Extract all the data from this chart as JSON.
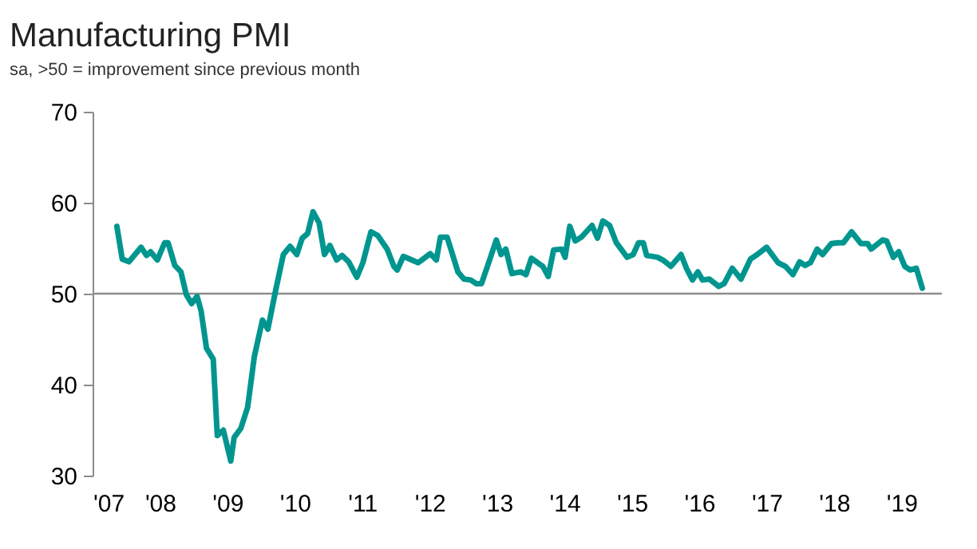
{
  "chart_data": {
    "type": "line",
    "title": "Manufacturing PMI",
    "subtitle": "sa, >50 = improvement since previous month",
    "x": [
      2007.36,
      2007.44,
      2007.54,
      2007.72,
      2007.8,
      2007.86,
      2007.96,
      2008.07,
      2008.12,
      2008.22,
      2008.31,
      2008.39,
      2008.47,
      2008.55,
      2008.61,
      2008.69,
      2008.79,
      2008.85,
      2008.94,
      2009.05,
      2009.1,
      2009.2,
      2009.3,
      2009.4,
      2009.52,
      2009.6,
      2009.72,
      2009.83,
      2009.93,
      2010.03,
      2010.11,
      2010.19,
      2010.27,
      2010.36,
      2010.44,
      2010.52,
      2010.62,
      2010.7,
      2010.8,
      2010.92,
      2011.01,
      2011.13,
      2011.23,
      2011.37,
      2011.47,
      2011.52,
      2011.61,
      2011.83,
      2012.01,
      2012.1,
      2012.16,
      2012.26,
      2012.42,
      2012.51,
      2012.61,
      2012.69,
      2012.77,
      2012.89,
      2012.99,
      2013.06,
      2013.13,
      2013.22,
      2013.35,
      2013.43,
      2013.51,
      2013.68,
      2013.76,
      2013.84,
      2013.96,
      2014.01,
      2014.08,
      2014.16,
      2014.25,
      2014.41,
      2014.49,
      2014.57,
      2014.67,
      2014.77,
      2014.93,
      2015.02,
      2015.1,
      2015.17,
      2015.22,
      2015.38,
      2015.46,
      2015.58,
      2015.73,
      2015.81,
      2015.9,
      2015.98,
      2016.05,
      2016.15,
      2016.29,
      2016.37,
      2016.49,
      2016.62,
      2016.76,
      2016.86,
      2017.0,
      2017.17,
      2017.28,
      2017.39,
      2017.49,
      2017.57,
      2017.65,
      2017.75,
      2017.83,
      2017.96,
      2018.06,
      2018.14,
      2018.26,
      2018.4,
      2018.5,
      2018.55,
      2018.72,
      2018.78,
      2018.88,
      2018.96,
      2019.05,
      2019.13,
      2019.22,
      2019.31
    ],
    "series": [
      {
        "color": "#00968f",
        "values": [
          57.4,
          53.8,
          53.5,
          55.1,
          54.2,
          54.6,
          53.7,
          55.6,
          55.6,
          53.1,
          52.4,
          49.9,
          48.9,
          49.7,
          48.1,
          44.0,
          42.8,
          34.4,
          35.0,
          31.6,
          34.2,
          35.2,
          37.5,
          43.1,
          47.1,
          46.1,
          50.5,
          54.3,
          55.2,
          54.3,
          56.1,
          56.6,
          59.0,
          57.8,
          54.3,
          55.3,
          53.7,
          54.2,
          53.5,
          51.8,
          53.4,
          56.8,
          56.4,
          54.9,
          53.0,
          52.6,
          54.1,
          53.4,
          54.4,
          53.7,
          56.2,
          56.2,
          52.4,
          51.6,
          51.5,
          51.1,
          51.1,
          53.7,
          55.9,
          54.3,
          54.9,
          52.2,
          52.4,
          52.1,
          53.9,
          53.0,
          51.9,
          54.8,
          54.9,
          54.0,
          57.4,
          55.8,
          56.2,
          57.5,
          56.1,
          58.0,
          57.5,
          55.6,
          54.0,
          54.3,
          55.6,
          55.6,
          54.2,
          54.0,
          53.7,
          53.0,
          54.3,
          52.8,
          51.5,
          52.4,
          51.5,
          51.6,
          50.8,
          51.1,
          52.8,
          51.6,
          53.8,
          54.3,
          55.1,
          53.4,
          53.0,
          52.1,
          53.5,
          53.1,
          53.4,
          54.9,
          54.3,
          55.5,
          55.6,
          55.6,
          56.8,
          55.5,
          55.5,
          54.9,
          55.9,
          55.8,
          54.0,
          54.6,
          53.0,
          52.6,
          52.8,
          50.6
        ]
      }
    ],
    "xlim": [
      2007,
      2019.6
    ],
    "xticks": [
      {
        "value": 2007,
        "label": "'07"
      },
      {
        "value": 2008,
        "label": "'08"
      },
      {
        "value": 2009,
        "label": "'09"
      },
      {
        "value": 2010,
        "label": "'10"
      },
      {
        "value": 2011,
        "label": "'11"
      },
      {
        "value": 2012,
        "label": "'12"
      },
      {
        "value": 2013,
        "label": "'13"
      },
      {
        "value": 2014,
        "label": "'14"
      },
      {
        "value": 2015,
        "label": "'15"
      },
      {
        "value": 2016,
        "label": "'16"
      },
      {
        "value": 2017,
        "label": "'17"
      },
      {
        "value": 2018,
        "label": "'18"
      },
      {
        "value": 2019,
        "label": "'19"
      }
    ],
    "ylim": [
      30,
      70
    ],
    "yticks": [
      30,
      40,
      50,
      60,
      70
    ],
    "ref_lines": [
      {
        "axis": "y",
        "value": 50,
        "color": "#8c8c8c"
      }
    ],
    "grid": false,
    "marker": "none",
    "line_style": "solid"
  }
}
